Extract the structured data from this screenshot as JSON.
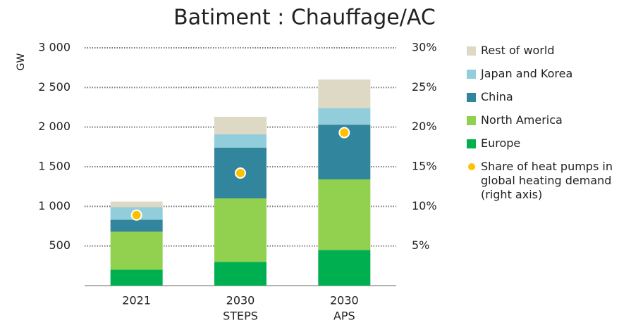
{
  "chart_data": {
    "type": "bar",
    "title": "Batiment : Chauffage/AC",
    "y_label": "GW",
    "categories": [
      [
        "2021"
      ],
      [
        "2030",
        "STEPS"
      ],
      [
        "2030",
        "APS"
      ]
    ],
    "stacked": true,
    "series": [
      {
        "name": "Europe",
        "color": "#00b050",
        "values": [
          200,
          300,
          450
        ]
      },
      {
        "name": "North America",
        "color": "#92d050",
        "values": [
          480,
          800,
          890
        ]
      },
      {
        "name": "China",
        "color": "#31859c",
        "values": [
          150,
          640,
          690
        ]
      },
      {
        "name": "Japan and Korea",
        "color": "#92cddc",
        "values": [
          160,
          170,
          210
        ]
      },
      {
        "name": "Rest of world",
        "color": "#ddd9c4",
        "values": [
          70,
          220,
          360
        ]
      },
      {
        "name": "Share of heat pumps in global heating demand (right axis)",
        "type": "scatter",
        "axis": "y2",
        "color": "#ffc000",
        "values": [
          8.9,
          14.2,
          19.3
        ]
      }
    ],
    "ylim": [
      0,
      3000
    ],
    "yticks": [
      500,
      {
        "value": 1000,
        "label": "1 000"
      },
      {
        "value": 1500,
        "label": "1 500"
      },
      {
        "value": 2000,
        "label": "2 000"
      },
      {
        "value": 2500,
        "label": "2 500"
      },
      {
        "value": 3000,
        "label": "3 000"
      }
    ],
    "y2lim": [
      0,
      30
    ],
    "y2ticks": [
      {
        "value": 5,
        "label": "5%"
      },
      {
        "value": 10,
        "label": "10%"
      },
      {
        "value": 15,
        "label": "15%"
      },
      {
        "value": 20,
        "label": "20%"
      },
      {
        "value": 25,
        "label": "25%"
      },
      {
        "value": 30,
        "label": "30%"
      }
    ],
    "grid": true
  }
}
